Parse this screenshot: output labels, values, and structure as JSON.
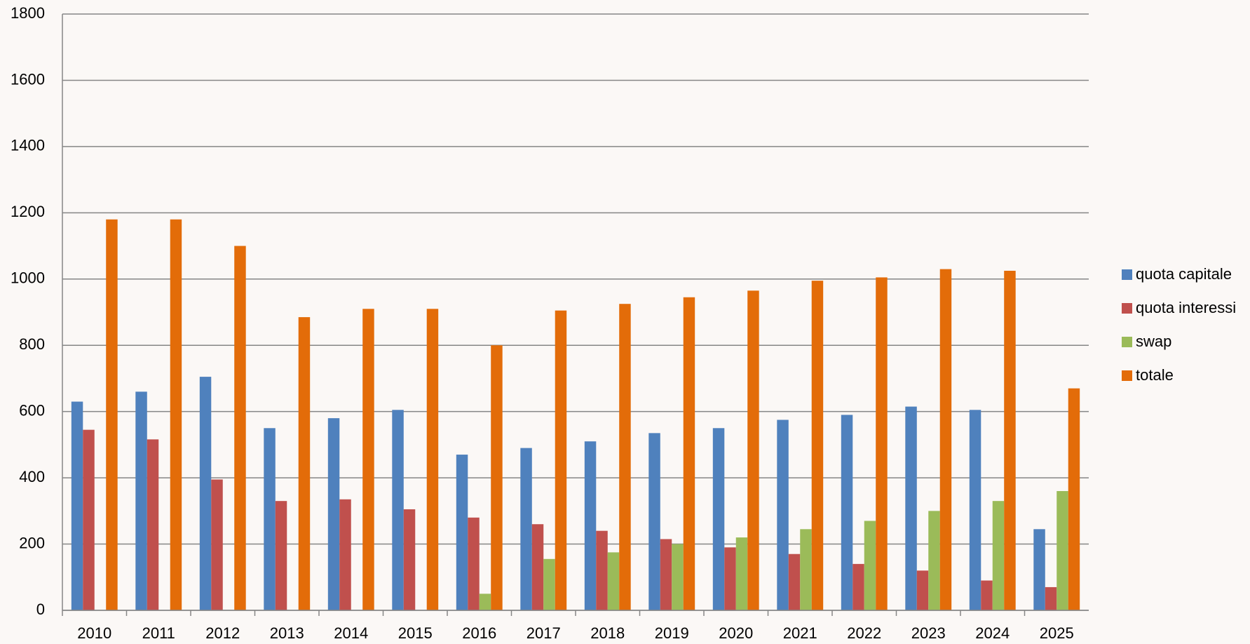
{
  "chart_data": {
    "type": "bar",
    "categories": [
      "2010",
      "2011",
      "2012",
      "2013",
      "2014",
      "2015",
      "2016",
      "2017",
      "2018",
      "2019",
      "2020",
      "2021",
      "2022",
      "2023",
      "2024",
      "2025"
    ],
    "series": [
      {
        "name": "quota capitale",
        "color": "#4f81bd",
        "values": [
          630,
          660,
          705,
          550,
          580,
          605,
          470,
          490,
          510,
          535,
          550,
          575,
          590,
          615,
          605,
          245
        ]
      },
      {
        "name": "quota interessi",
        "color": "#c0504d",
        "values": [
          545,
          516,
          395,
          330,
          335,
          305,
          280,
          260,
          240,
          215,
          190,
          170,
          140,
          120,
          90,
          70
        ]
      },
      {
        "name": "swap",
        "color": "#9bbb59",
        "values": [
          0,
          0,
          0,
          0,
          0,
          0,
          50,
          155,
          175,
          200,
          220,
          245,
          270,
          300,
          330,
          360
        ]
      },
      {
        "name": "totale",
        "color": "#e36c09",
        "values": [
          1180,
          1180,
          1100,
          885,
          910,
          910,
          800,
          905,
          925,
          945,
          965,
          995,
          1005,
          1030,
          1025,
          670
        ]
      }
    ],
    "ylim": [
      0,
      1800
    ],
    "yticks": [
      0,
      200,
      400,
      600,
      800,
      1000,
      1200,
      1400,
      1600,
      1800
    ],
    "grid": true,
    "legend": "right"
  }
}
